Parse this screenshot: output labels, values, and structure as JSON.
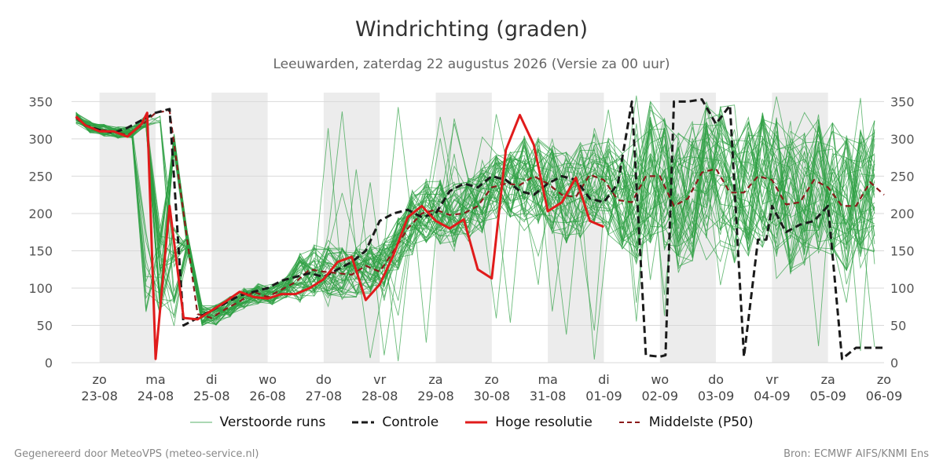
{
  "chart_data": {
    "type": "line",
    "title": "Windrichting (graden)",
    "subtitle": "Leeuwarden, zaterdag 22 augustus 2026 (Versie za 00 uur)",
    "xlabel": "",
    "ylabel": "",
    "ylim": [
      0,
      360
    ],
    "y_ticks": [
      0,
      50,
      100,
      150,
      200,
      250,
      300,
      350
    ],
    "grid": true,
    "legend_position": "bottom",
    "x_range_days": [
      22.5,
      37.0
    ],
    "x_ticks": [
      {
        "day": 23,
        "weekday": "zo",
        "date": "23-08"
      },
      {
        "day": 24,
        "weekday": "ma",
        "date": "24-08"
      },
      {
        "day": 25,
        "weekday": "di",
        "date": "25-08"
      },
      {
        "day": 26,
        "weekday": "wo",
        "date": "26-08"
      },
      {
        "day": 27,
        "weekday": "do",
        "date": "27-08"
      },
      {
        "day": 28,
        "weekday": "vr",
        "date": "28-08"
      },
      {
        "day": 29,
        "weekday": "za",
        "date": "29-08"
      },
      {
        "day": 30,
        "weekday": "zo",
        "date": "30-08"
      },
      {
        "day": 31,
        "weekday": "ma",
        "date": "31-08"
      },
      {
        "day": 32,
        "weekday": "di",
        "date": "01-09"
      },
      {
        "day": 33,
        "weekday": "wo",
        "date": "02-09"
      },
      {
        "day": 34,
        "weekday": "do",
        "date": "03-09"
      },
      {
        "day": 35,
        "weekday": "vr",
        "date": "04-09"
      },
      {
        "day": 36,
        "weekday": "za",
        "date": "05-09"
      },
      {
        "day": 37,
        "weekday": "zo",
        "date": "06-09"
      }
    ],
    "shaded_days": [
      [
        23,
        24
      ],
      [
        25,
        26
      ],
      [
        27,
        28
      ],
      [
        29,
        30
      ],
      [
        31,
        32
      ],
      [
        33,
        34
      ],
      [
        35,
        36
      ]
    ],
    "series": [
      {
        "name": "Controle",
        "color": "#1a1a1a",
        "style": "dashed",
        "x": [
          22.58,
          22.75,
          23.0,
          23.25,
          23.5,
          23.75,
          24.0,
          24.25,
          24.5,
          24.75,
          25.0,
          25.25,
          25.5,
          25.75,
          26.0,
          26.25,
          26.5,
          26.75,
          27.0,
          27.25,
          27.5,
          27.75,
          28.0,
          28.25,
          28.5,
          28.75,
          29.0,
          29.25,
          29.5,
          29.75,
          30.0,
          30.25,
          30.5,
          30.75,
          31.0,
          31.25,
          31.5,
          31.75,
          32.0,
          32.25,
          32.5,
          32.75,
          33.0,
          33.1,
          33.25,
          33.5,
          33.75,
          34.0,
          34.25,
          34.5,
          34.75,
          34.9,
          35.0,
          35.25,
          35.5,
          35.75,
          36.0,
          36.25,
          36.5,
          36.75,
          37.0
        ],
        "y": [
          330,
          318,
          312,
          308,
          315,
          325,
          335,
          340,
          50,
          60,
          70,
          80,
          90,
          95,
          100,
          110,
          115,
          120,
          115,
          125,
          135,
          150,
          190,
          200,
          205,
          195,
          200,
          230,
          240,
          235,
          250,
          245,
          230,
          225,
          240,
          250,
          245,
          220,
          215,
          240,
          350,
          10,
          8,
          10,
          350,
          350,
          353,
          320,
          345,
          8,
          165,
          165,
          210,
          175,
          185,
          190,
          210,
          5,
          20,
          20,
          20
        ]
      },
      {
        "name": "Hoge resolutie",
        "color": "#e01b1b",
        "style": "solid",
        "x": [
          22.58,
          22.75,
          23.0,
          23.25,
          23.5,
          23.75,
          23.85,
          24.0,
          24.25,
          24.5,
          24.75,
          25.0,
          25.25,
          25.5,
          25.75,
          26.0,
          26.25,
          26.5,
          26.75,
          27.0,
          27.25,
          27.5,
          27.75,
          28.0,
          28.25,
          28.5,
          28.75,
          29.0,
          29.25,
          29.5,
          29.75,
          30.0,
          30.25,
          30.5,
          30.75,
          31.0,
          31.25,
          31.5,
          31.75,
          32.0
        ],
        "y": [
          330,
          318,
          310,
          310,
          303,
          320,
          335,
          5,
          210,
          60,
          58,
          70,
          82,
          95,
          88,
          86,
          92,
          92,
          100,
          112,
          135,
          142,
          84,
          105,
          145,
          195,
          210,
          190,
          180,
          192,
          125,
          113,
          285,
          332,
          292,
          203,
          215,
          248,
          190,
          182
        ]
      },
      {
        "name": "Middelste (P50)",
        "color": "#8b1a1a",
        "style": "dashed",
        "x": [
          22.58,
          22.75,
          23.0,
          23.25,
          23.5,
          23.75,
          24.0,
          24.25,
          24.5,
          24.75,
          25.0,
          25.25,
          25.5,
          25.75,
          26.0,
          26.25,
          26.5,
          26.75,
          27.0,
          27.25,
          27.5,
          27.75,
          28.0,
          28.25,
          28.5,
          28.75,
          29.0,
          29.25,
          29.5,
          29.75,
          30.0,
          30.25,
          30.5,
          30.75,
          31.0,
          31.25,
          31.5,
          31.75,
          32.0,
          32.25,
          32.5,
          32.75,
          33.0,
          33.25,
          33.5,
          33.75,
          34.0,
          34.25,
          34.5,
          34.75,
          35.0,
          35.25,
          35.5,
          35.75,
          36.0,
          36.25,
          36.5,
          36.75,
          37.0
        ],
        "y": [
          328,
          318,
          312,
          310,
          305,
          318,
          335,
          338,
          200,
          65,
          60,
          72,
          82,
          95,
          88,
          98,
          108,
          125,
          122,
          120,
          118,
          130,
          122,
          150,
          180,
          200,
          205,
          198,
          200,
          210,
          235,
          240,
          238,
          250,
          240,
          225,
          222,
          252,
          245,
          218,
          215,
          250,
          250,
          210,
          220,
          255,
          260,
          228,
          228,
          250,
          245,
          212,
          215,
          245,
          235,
          210,
          210,
          242,
          225
        ]
      },
      {
        "name": "Verstoorde runs",
        "color": "#2ea043",
        "style": "solid",
        "width": 0.9,
        "opacity": 0.7,
        "members": 50,
        "note": "ensemble members, shown as a band of thin lines"
      }
    ]
  },
  "legend": [
    {
      "key": "members",
      "label": "Verstoorde runs"
    },
    {
      "key": "control",
      "label": "Controle"
    },
    {
      "key": "hires",
      "label": "Hoge resolutie"
    },
    {
      "key": "median",
      "label": "Middelste (P50)"
    }
  ],
  "footer": {
    "left": "Gegenereerd door MeteoVPS (meteo-service.nl)",
    "right": "Bron: ECMWF AIFS/KNMI Ens"
  }
}
